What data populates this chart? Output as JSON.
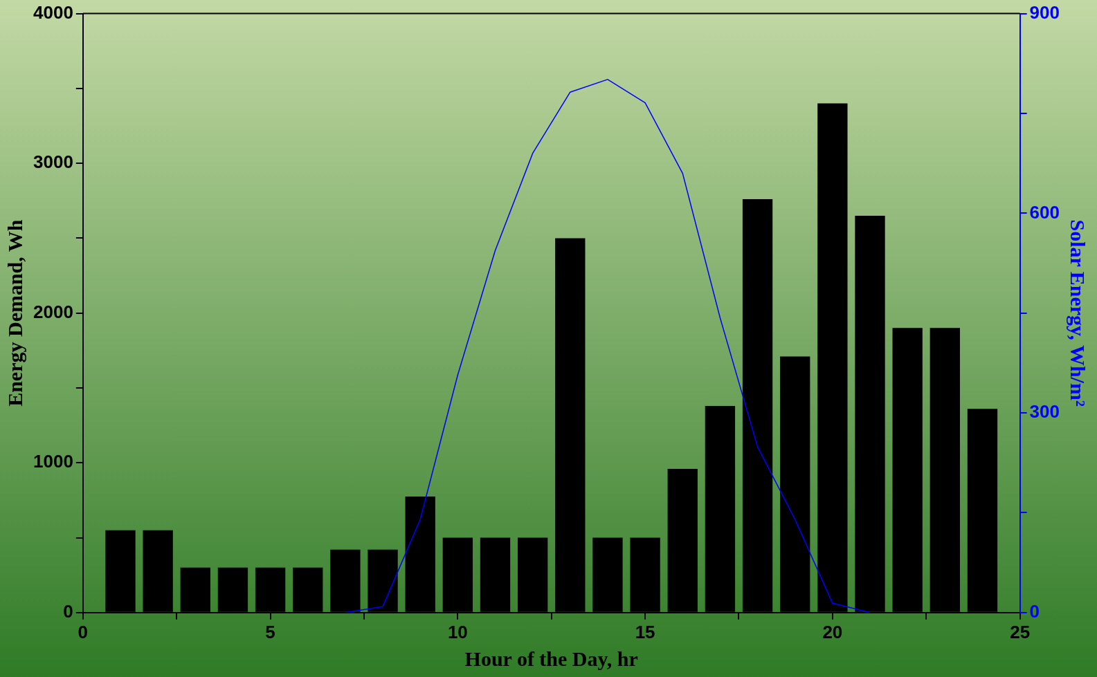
{
  "chart_data": {
    "type": "bar",
    "xlabel": "Hour of the Day, hr",
    "ylabel": "Energy Demand, Wh",
    "y2label": "Solar Energy, Wh/m²",
    "x": [
      1,
      2,
      3,
      4,
      5,
      6,
      7,
      8,
      9,
      10,
      11,
      12,
      13,
      14,
      15,
      16,
      17,
      18,
      19,
      20,
      21,
      22,
      23,
      24
    ],
    "series": [
      {
        "color": "#000000",
        "values": [
          550,
          550,
          300,
          300,
          300,
          300,
          420,
          420,
          775,
          500,
          500,
          500,
          2500,
          500,
          500,
          960,
          1380,
          2760,
          1710,
          3400,
          2650,
          1900,
          1900,
          1360
        ]
      },
      {
        "type": "line",
        "axis": "y2",
        "color": "#0000ff",
        "x": [
          7,
          8,
          9,
          10,
          11,
          12,
          13,
          14,
          15,
          16,
          17,
          18,
          19,
          20,
          21
        ],
        "values": [
          0,
          9,
          140,
          357,
          544,
          690,
          782,
          801,
          766,
          660,
          443,
          249,
          140,
          14,
          0
        ]
      }
    ],
    "xlim": [
      0,
      25
    ],
    "xticks": [
      0,
      {
        "value": 2.5,
        "label": null
      },
      5,
      {
        "value": 7.5,
        "label": null
      },
      10,
      {
        "value": 12.5,
        "label": null
      },
      15,
      {
        "value": 17.5,
        "label": null
      },
      20,
      {
        "value": 22.5,
        "label": null
      },
      25
    ],
    "ylim": [
      0,
      4000
    ],
    "yticks": [
      0,
      {
        "value": 500,
        "label": null
      },
      1000,
      {
        "value": 1500,
        "label": null
      },
      2000,
      {
        "value": 2500,
        "label": null
      },
      3000,
      {
        "value": 3500,
        "label": null
      },
      4000
    ],
    "y2lim": [
      0,
      900
    ],
    "y2ticks": [
      0,
      {
        "value": 150,
        "label": null
      },
      300,
      {
        "value": 450,
        "label": null
      },
      600,
      {
        "value": 750,
        "label": null
      },
      900
    ],
    "grid": false,
    "legend": false,
    "marker": "none"
  }
}
